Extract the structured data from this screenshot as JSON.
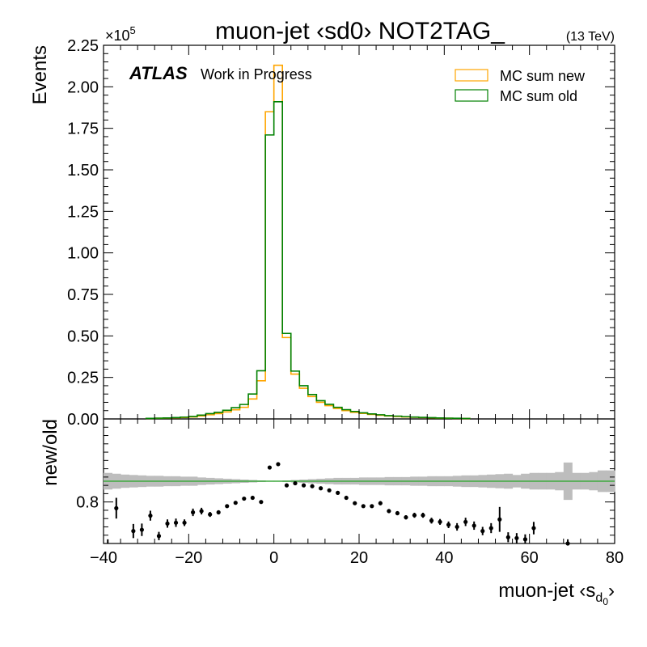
{
  "chart_data": [
    {
      "type": "line",
      "title": "muon-jet ‹sd0› NOT2TAG_",
      "energy_label": "(13 TeV)",
      "ylabel": "Events",
      "y_multiplier_label": "×10",
      "y_multiplier_exponent": "5",
      "experiment_label": "ATLAS",
      "status_label": "Work in Progress",
      "xlim": [
        -40,
        80
      ],
      "ylim": [
        0,
        225000
      ],
      "x_ticks": [
        -40,
        -20,
        0,
        20,
        40,
        60,
        80
      ],
      "y_ticks": [
        0,
        0.25,
        0.5,
        0.75,
        1.0,
        1.25,
        1.5,
        1.75,
        2.0,
        2.25
      ],
      "y_tick_labels": [
        "0.00",
        "0.25",
        "0.50",
        "0.75",
        "1.00",
        "1.25",
        "1.50",
        "1.75",
        "2.00",
        "2.25"
      ],
      "legend_position": "top-right",
      "bin_edges": [
        -30,
        -28,
        -26,
        -24,
        -22,
        -20,
        -18,
        -16,
        -14,
        -12,
        -10,
        -8,
        -6,
        -4,
        -2,
        0,
        2,
        4,
        6,
        8,
        10,
        12,
        14,
        16,
        18,
        20,
        22,
        24,
        26,
        28,
        30,
        32,
        34,
        36,
        38,
        40,
        42,
        44,
        46
      ],
      "series": [
        {
          "name": "MC sum new",
          "color": "#ffa500",
          "values": [
            300,
            400,
            500,
            700,
            900,
            1200,
            1800,
            2500,
            3200,
            4200,
            5500,
            7000,
            12000,
            23000,
            185000,
            213000,
            49000,
            27000,
            18500,
            13500,
            10000,
            8000,
            6300,
            5000,
            4000,
            3300,
            2700,
            2200,
            1800,
            1500,
            1200,
            1000,
            800,
            650,
            500,
            400,
            300,
            250
          ]
        },
        {
          "name": "MC sum old",
          "color": "#008000",
          "values": [
            350,
            450,
            600,
            800,
            1100,
            1500,
            2300,
            3200,
            4000,
            5200,
            6800,
            8700,
            15000,
            29000,
            171000,
            191000,
            51500,
            28800,
            20000,
            14700,
            11000,
            8800,
            7000,
            5600,
            4500,
            3700,
            3000,
            2500,
            2000,
            1700,
            1400,
            1150,
            950,
            750,
            600,
            480,
            380,
            300
          ]
        }
      ]
    },
    {
      "type": "scatter",
      "ylabel": "new/old",
      "xlabel_main": "muon-jet ‹s",
      "xlabel_sub": "d",
      "xlabel_subsub": "0",
      "xlabel_end": "›",
      "xlim": [
        -40,
        80
      ],
      "ylim": [
        0.7,
        1.0
      ],
      "reference_line": 0.85,
      "reference_color": "#00a000",
      "y_ticks": [
        0.8
      ],
      "y_tick_labels": [
        "0.8"
      ],
      "x_ticks": [
        -40,
        -20,
        0,
        20,
        40,
        60,
        80
      ],
      "x_tick_labels": [
        "−40",
        "−20",
        "0",
        "20",
        "40",
        "60",
        "80"
      ],
      "band_edges": [
        -40,
        -38,
        -36,
        -34,
        -32,
        -30,
        -28,
        -26,
        -24,
        -22,
        -20,
        -18,
        -16,
        -14,
        -12,
        -10,
        -8,
        -6,
        -4,
        -2,
        0,
        2,
        4,
        6,
        8,
        10,
        12,
        14,
        16,
        18,
        20,
        22,
        24,
        26,
        28,
        30,
        32,
        34,
        36,
        38,
        40,
        42,
        44,
        46,
        48,
        50,
        52,
        54,
        56,
        58,
        60,
        62,
        64,
        66,
        68,
        70,
        72,
        74,
        76,
        78,
        80
      ],
      "band_half_width": [
        0.02,
        0.018,
        0.016,
        0.015,
        0.014,
        0.013,
        0.013,
        0.012,
        0.012,
        0.011,
        0.011,
        0.009,
        0.008,
        0.007,
        0.006,
        0.005,
        0.004,
        0.003,
        0.002,
        0.0015,
        0.0015,
        0.002,
        0.003,
        0.004,
        0.005,
        0.006,
        0.007,
        0.008,
        0.008,
        0.008,
        0.009,
        0.009,
        0.009,
        0.01,
        0.01,
        0.01,
        0.011,
        0.011,
        0.012,
        0.012,
        0.012,
        0.013,
        0.014,
        0.014,
        0.015,
        0.016,
        0.017,
        0.018,
        0.015,
        0.018,
        0.02,
        0.02,
        0.02,
        0.022,
        0.045,
        0.02,
        0.02,
        0.022,
        0.026,
        0.026
      ],
      "band_color": "#bdbdbd",
      "points": [
        {
          "x": -39,
          "y": 0.695,
          "err": 0.015
        },
        {
          "x": -37,
          "y": 0.785,
          "err": 0.025
        },
        {
          "x": -33,
          "y": 0.73,
          "err": 0.017
        },
        {
          "x": -31,
          "y": 0.733,
          "err": 0.015
        },
        {
          "x": -29,
          "y": 0.767,
          "err": 0.012
        },
        {
          "x": -27,
          "y": 0.718,
          "err": 0.01
        },
        {
          "x": -25,
          "y": 0.748,
          "err": 0.01
        },
        {
          "x": -23,
          "y": 0.75,
          "err": 0.01
        },
        {
          "x": -21,
          "y": 0.75,
          "err": 0.008
        },
        {
          "x": -19,
          "y": 0.775,
          "err": 0.009
        },
        {
          "x": -17,
          "y": 0.778,
          "err": 0.008
        },
        {
          "x": -15,
          "y": 0.77,
          "err": 0.006
        },
        {
          "x": -13,
          "y": 0.775,
          "err": 0.005
        },
        {
          "x": -11,
          "y": 0.79,
          "err": 0.004
        },
        {
          "x": -9,
          "y": 0.798,
          "err": 0.004
        },
        {
          "x": -7,
          "y": 0.808,
          "err": 0.004
        },
        {
          "x": -5,
          "y": 0.81,
          "err": 0.003
        },
        {
          "x": -3,
          "y": 0.8,
          "err": 0.003
        },
        {
          "x": -1,
          "y": 0.883,
          "err": 0.002
        },
        {
          "x": 1,
          "y": 0.891,
          "err": 0.002
        },
        {
          "x": 3,
          "y": 0.84,
          "err": 0.002
        },
        {
          "x": 5,
          "y": 0.845,
          "err": 0.003
        },
        {
          "x": 7,
          "y": 0.84,
          "err": 0.003
        },
        {
          "x": 9,
          "y": 0.838,
          "err": 0.003
        },
        {
          "x": 11,
          "y": 0.833,
          "err": 0.003
        },
        {
          "x": 13,
          "y": 0.828,
          "err": 0.003
        },
        {
          "x": 15,
          "y": 0.822,
          "err": 0.004
        },
        {
          "x": 17,
          "y": 0.81,
          "err": 0.004
        },
        {
          "x": 19,
          "y": 0.797,
          "err": 0.004
        },
        {
          "x": 21,
          "y": 0.79,
          "err": 0.004
        },
        {
          "x": 23,
          "y": 0.79,
          "err": 0.004
        },
        {
          "x": 25,
          "y": 0.797,
          "err": 0.005
        },
        {
          "x": 27,
          "y": 0.778,
          "err": 0.005
        },
        {
          "x": 29,
          "y": 0.773,
          "err": 0.005
        },
        {
          "x": 31,
          "y": 0.763,
          "err": 0.005
        },
        {
          "x": 33,
          "y": 0.768,
          "err": 0.006
        },
        {
          "x": 35,
          "y": 0.768,
          "err": 0.006
        },
        {
          "x": 37,
          "y": 0.755,
          "err": 0.007
        },
        {
          "x": 39,
          "y": 0.752,
          "err": 0.007
        },
        {
          "x": 41,
          "y": 0.745,
          "err": 0.008
        },
        {
          "x": 43,
          "y": 0.74,
          "err": 0.009
        },
        {
          "x": 45,
          "y": 0.752,
          "err": 0.01
        },
        {
          "x": 47,
          "y": 0.743,
          "err": 0.01
        },
        {
          "x": 49,
          "y": 0.73,
          "err": 0.01
        },
        {
          "x": 51,
          "y": 0.737,
          "err": 0.012
        },
        {
          "x": 53,
          "y": 0.758,
          "err": 0.03
        },
        {
          "x": 55,
          "y": 0.715,
          "err": 0.012
        },
        {
          "x": 57,
          "y": 0.713,
          "err": 0.012
        },
        {
          "x": 59,
          "y": 0.71,
          "err": 0.012
        },
        {
          "x": 61,
          "y": 0.737,
          "err": 0.015
        },
        {
          "x": 69,
          "y": 0.7,
          "err": 0.01
        }
      ]
    }
  ]
}
